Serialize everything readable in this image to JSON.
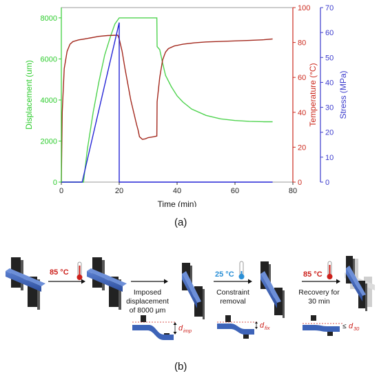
{
  "chart_data": {
    "type": "line",
    "xlabel": "Time (min)",
    "xlim": [
      0,
      80
    ],
    "x_ticks": [
      0,
      20,
      40,
      60,
      80
    ],
    "y_axes": [
      {
        "id": "disp",
        "label": "Displacement (um)",
        "color": "#2ecc2e",
        "lim": [
          0,
          8500
        ],
        "ticks": [
          0,
          2000,
          4000,
          6000,
          8000
        ]
      },
      {
        "id": "temp",
        "label": "Temperature (°C)",
        "color": "#cc2a1e",
        "lim": [
          0,
          100
        ],
        "ticks": [
          0,
          20,
          40,
          60,
          80,
          100
        ]
      },
      {
        "id": "stress",
        "label": "Stress (MPa)",
        "color": "#3a3acc",
        "lim": [
          0,
          70
        ],
        "ticks": [
          0,
          10,
          20,
          30,
          40,
          50,
          60,
          70
        ]
      }
    ],
    "series": [
      {
        "axis": "disp",
        "color": "#4ed34e",
        "points": [
          [
            0,
            0
          ],
          [
            7.7,
            0
          ],
          [
            7.7,
            50
          ],
          [
            9,
            1600
          ],
          [
            11,
            3400
          ],
          [
            13,
            4900
          ],
          [
            15,
            6200
          ],
          [
            17,
            7100
          ],
          [
            18.5,
            7700
          ],
          [
            20,
            8000
          ],
          [
            24,
            8000
          ],
          [
            28,
            8000
          ],
          [
            33,
            8000
          ],
          [
            33.1,
            6600
          ],
          [
            34,
            6450
          ],
          [
            35,
            5800
          ],
          [
            36,
            5200
          ],
          [
            38,
            4650
          ],
          [
            40,
            4200
          ],
          [
            42,
            3900
          ],
          [
            45,
            3560
          ],
          [
            50,
            3250
          ],
          [
            55,
            3080
          ],
          [
            60,
            3000
          ],
          [
            65,
            2960
          ],
          [
            70,
            2940
          ],
          [
            73,
            2940
          ]
        ]
      },
      {
        "axis": "temp",
        "color": "#a3281d",
        "points": [
          [
            0,
            0
          ],
          [
            0.3,
            40
          ],
          [
            1,
            65
          ],
          [
            2,
            75
          ],
          [
            3,
            79
          ],
          [
            4,
            80.5
          ],
          [
            6,
            81.5
          ],
          [
            8,
            82
          ],
          [
            10,
            82.6
          ],
          [
            13,
            83.5
          ],
          [
            16,
            84
          ],
          [
            19.5,
            84.2
          ],
          [
            20,
            82
          ],
          [
            21,
            75
          ],
          [
            22,
            65
          ],
          [
            23,
            56
          ],
          [
            24,
            47
          ],
          [
            25,
            40
          ],
          [
            26,
            33
          ],
          [
            26.5,
            30
          ],
          [
            27,
            26
          ],
          [
            28,
            24.5
          ],
          [
            29,
            24.8
          ],
          [
            30,
            25.5
          ],
          [
            32,
            26
          ],
          [
            33,
            26.4
          ],
          [
            33.1,
            46
          ],
          [
            34,
            60
          ],
          [
            35,
            70
          ],
          [
            36,
            74.5
          ],
          [
            37,
            76.5
          ],
          [
            39,
            78
          ],
          [
            42,
            79
          ],
          [
            46,
            79.8
          ],
          [
            50,
            80.3
          ],
          [
            55,
            80.6
          ],
          [
            60,
            80.9
          ],
          [
            65,
            81.2
          ],
          [
            70,
            81.6
          ],
          [
            73,
            82
          ]
        ]
      },
      {
        "axis": "stress",
        "color": "#2424d6",
        "points": [
          [
            0,
            0
          ],
          [
            7.2,
            0
          ],
          [
            20,
            64
          ],
          [
            20,
            0
          ],
          [
            73,
            0
          ]
        ]
      }
    ]
  },
  "panel_labels": {
    "a": "(a)",
    "b": "(b)"
  },
  "diagram": {
    "steps": [
      {
        "label": "85 °C",
        "value": "85",
        "unit": "°C"
      },
      {
        "label": "Imposed displacement of 8000 μm",
        "lines": [
          "Imposed",
          "displacement",
          "of 8000 μm"
        ]
      },
      {
        "label": "25 °C",
        "value": "25",
        "unit": "°C",
        "caption_lines": [
          "Constraint",
          "removal"
        ]
      },
      {
        "label": "85 °C",
        "value": "85",
        "unit": "°C",
        "caption_lines": [
          "Recovery for",
          "30 min"
        ]
      }
    ],
    "dims": {
      "d_imp": {
        "base": "d",
        "sub": "imp"
      },
      "d_fix": {
        "base": "d",
        "sub": "fix"
      },
      "d_30": {
        "base": "d",
        "sub": "30",
        "prefix": "≤"
      }
    },
    "colors": {
      "hot": "#cc1f1a",
      "cold": "#2a8fd6",
      "blue_bar": "#3d63b8",
      "block": "#222222"
    }
  }
}
